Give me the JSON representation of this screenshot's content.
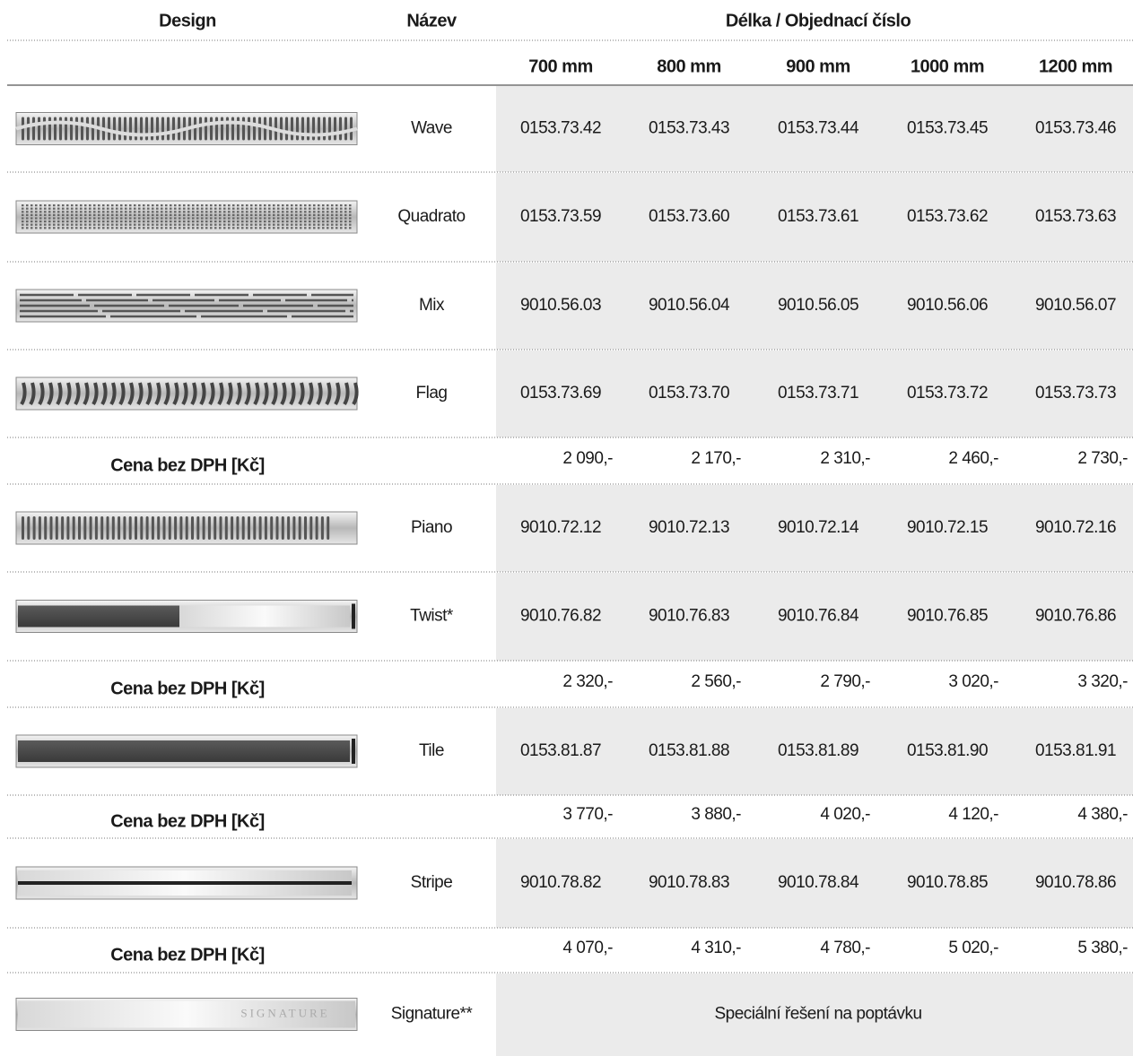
{
  "header": {
    "design": "Design",
    "name": "Název",
    "length_group": "Délka / Objednací číslo"
  },
  "sizes": [
    "700 mm",
    "800 mm",
    "900 mm",
    "1000 mm",
    "1200 mm"
  ],
  "rows": [
    {
      "name": "Wave",
      "codes": [
        "0153.73.42",
        "0153.73.43",
        "0153.73.44",
        "0153.73.45",
        "0153.73.46"
      ]
    },
    {
      "name": "Quadrato",
      "codes": [
        "0153.73.59",
        "0153.73.60",
        "0153.73.61",
        "0153.73.62",
        "0153.73.63"
      ]
    },
    {
      "name": "Mix",
      "codes": [
        "9010.56.03",
        "9010.56.04",
        "9010.56.05",
        "9010.56.06",
        "9010.56.07"
      ]
    },
    {
      "name": "Flag",
      "codes": [
        "0153.73.69",
        "0153.73.70",
        "0153.73.71",
        "0153.73.72",
        "0153.73.73"
      ]
    },
    {
      "label": "Cena bez DPH [Kč]",
      "prices": [
        "2 090,-",
        "2 170,-",
        "2 310,-",
        "2 460,-",
        "2 730,-"
      ]
    },
    {
      "name": "Piano",
      "codes": [
        "9010.72.12",
        "9010.72.13",
        "9010.72.14",
        "9010.72.15",
        "9010.72.16"
      ]
    },
    {
      "name": "Twist*",
      "codes": [
        "9010.76.82",
        "9010.76.83",
        "9010.76.84",
        "9010.76.85",
        "9010.76.86"
      ]
    },
    {
      "label": "Cena bez DPH [Kč]",
      "prices": [
        "2 320,-",
        "2 560,-",
        "2 790,-",
        "3 020,-",
        "3 320,-"
      ]
    },
    {
      "name": "Tile",
      "codes": [
        "0153.81.87",
        "0153.81.88",
        "0153.81.89",
        "0153.81.90",
        "0153.81.91"
      ]
    },
    {
      "label": "Cena bez DPH [Kč]",
      "prices": [
        "3 770,-",
        "3 880,-",
        "4 020,-",
        "4 120,-",
        "4 380,-"
      ]
    },
    {
      "name": "Stripe",
      "codes": [
        "9010.78.82",
        "9010.78.83",
        "9010.78.84",
        "9010.78.85",
        "9010.78.86"
      ]
    },
    {
      "label": "Cena bez DPH [Kč]",
      "prices": [
        "4 070,-",
        "4 310,-",
        "4 780,-",
        "5 020,-",
        "5 380,-"
      ]
    },
    {
      "name": "Signature**",
      "note": "Speciální řešení na poptávku",
      "image_text": "SIGNATURE"
    }
  ]
}
